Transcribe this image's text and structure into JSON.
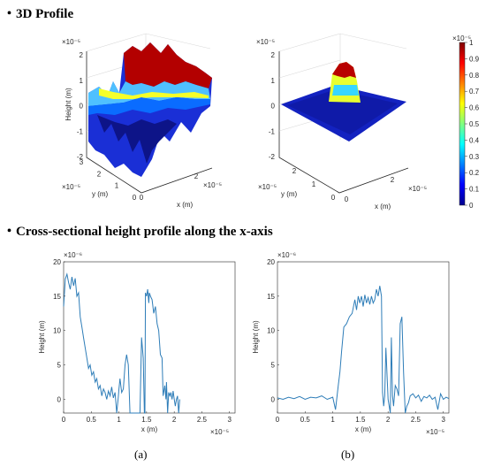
{
  "headings": {
    "profile3d": "・3D Profile",
    "cross": "・Cross-sectional height profile along the x-axis"
  },
  "captions": {
    "a": "(a)",
    "b": "(b)"
  },
  "colors": {
    "line": "#2e7db8",
    "axis": "#262626",
    "grid": "#d9d9d9"
  },
  "colorbar": {
    "colormap": "jet",
    "ticks": [
      "1",
      "0.9",
      "0.8",
      "0.7",
      "0.6",
      "0.5",
      "0.4",
      "0.3",
      "0.2",
      "0.1",
      "0"
    ],
    "exponent": "×10⁻⁵"
  },
  "chart_data": [
    {
      "type": "surface",
      "panel": "3d-a",
      "zlabel": "Height (m)",
      "xlabel": "x (m)",
      "ylabel": "y (m)",
      "zticks": [
        "2",
        "1",
        "0",
        "-1",
        "-2"
      ],
      "xticks": [
        "0",
        "2"
      ],
      "yticks": [
        "0",
        "1",
        "2",
        "3"
      ],
      "exponent": "×10⁻⁵",
      "zlim": [
        -2.2,
        2
      ],
      "colormap": "jet"
    },
    {
      "type": "surface",
      "panel": "3d-b",
      "xlabel": "x (m)",
      "ylabel": "y (m)",
      "zticks": [
        "2",
        "1",
        "0",
        "-1",
        "-2"
      ],
      "xticks": [
        "0",
        "2"
      ],
      "yticks": [
        "0",
        "1",
        "2"
      ],
      "exponent": "×10⁻⁵",
      "zlim": [
        -2,
        2
      ],
      "colormap": "jet"
    },
    {
      "type": "line",
      "panel": "a",
      "xlabel": "x (m)",
      "ylabel": "Height (m)",
      "y_exponent": "×10⁻⁶",
      "x_exponent": "×10⁻⁵",
      "xlim": [
        0,
        3.1
      ],
      "ylim": [
        -2,
        20
      ],
      "xticks": [
        "0",
        "0.5",
        "1",
        "1.5",
        "2",
        "2.5",
        "3"
      ],
      "yticks": [
        "0",
        "5",
        "10",
        "15",
        "20"
      ],
      "x": [
        0,
        0.03,
        0.06,
        0.09,
        0.12,
        0.15,
        0.18,
        0.21,
        0.24,
        0.27,
        0.3,
        0.33,
        0.36,
        0.39,
        0.42,
        0.45,
        0.48,
        0.51,
        0.54,
        0.57,
        0.6,
        0.63,
        0.66,
        0.69,
        0.72,
        0.75,
        0.78,
        0.81,
        0.84,
        0.87,
        0.9,
        0.93,
        0.96,
        0.99,
        1.0,
        1.02,
        1.05,
        1.08,
        1.11,
        1.14,
        1.17,
        1.2,
        1.22,
        1.24,
        1.25,
        1.26,
        1.27,
        1.29,
        1.32,
        1.35,
        1.38,
        1.41,
        1.44,
        1.46,
        1.47,
        1.48,
        1.5,
        1.52,
        1.54,
        1.55,
        1.57,
        1.6,
        1.63,
        1.66,
        1.69,
        1.72,
        1.75,
        1.78,
        1.8,
        1.83,
        1.85,
        1.86,
        1.88,
        1.9,
        1.92,
        1.94,
        1.96,
        1.98,
        2.0,
        2.02,
        2.04,
        2.06,
        2.08,
        2.1
      ],
      "y": [
        13.5,
        17.5,
        18.2,
        17.0,
        16.0,
        17.8,
        16.5,
        17.6,
        15.0,
        15.5,
        12.0,
        10.5,
        9.0,
        7.5,
        6.0,
        4.5,
        5.0,
        3.5,
        4.0,
        2.5,
        3.0,
        1.5,
        2.0,
        0.5,
        1.5,
        1.0,
        0.0,
        1.2,
        0.5,
        1.8,
        0.2,
        1.0,
        -2.0,
        0.5,
        1.5,
        3.0,
        1.0,
        1.5,
        5.0,
        6.5,
        5.0,
        -2.0,
        -2.0,
        -2.0,
        -2.0,
        -2.0,
        -2.0,
        -2.0,
        -2.0,
        -2.0,
        -2.0,
        9.0,
        6.0,
        -2.0,
        -2.0,
        15.5,
        15.0,
        16.0,
        14.0,
        15.5,
        15.0,
        14.5,
        12.5,
        13.5,
        11.0,
        10.0,
        6.5,
        6.0,
        0.5,
        2.0,
        0.0,
        2.5,
        -2.0,
        1.0,
        0.5,
        1.0,
        0.0,
        1.2,
        0.0,
        -1.0,
        0.0,
        0.5,
        -2.0,
        0.0
      ]
    },
    {
      "type": "line",
      "panel": "b",
      "xlabel": "x (m)",
      "ylabel": "Height (m)",
      "y_exponent": "×10⁻⁶",
      "x_exponent": "×10⁻⁵",
      "xlim": [
        0,
        3.1
      ],
      "ylim": [
        -2,
        20
      ],
      "xticks": [
        "0",
        "0.5",
        "1",
        "1.5",
        "2",
        "2.5",
        "3"
      ],
      "yticks": [
        "0",
        "5",
        "10",
        "15",
        "20"
      ],
      "x": [
        0,
        0.1,
        0.2,
        0.3,
        0.4,
        0.5,
        0.6,
        0.7,
        0.8,
        0.9,
        1.0,
        1.05,
        1.1,
        1.13,
        1.16,
        1.2,
        1.25,
        1.3,
        1.35,
        1.4,
        1.43,
        1.46,
        1.49,
        1.52,
        1.55,
        1.58,
        1.61,
        1.64,
        1.67,
        1.7,
        1.73,
        1.76,
        1.79,
        1.82,
        1.85,
        1.88,
        1.9,
        1.92,
        1.94,
        1.96,
        2.0,
        2.04,
        2.06,
        2.08,
        2.1,
        2.13,
        2.16,
        2.19,
        2.22,
        2.25,
        2.28,
        2.31,
        2.34,
        2.37,
        2.4,
        2.45,
        2.5,
        2.55,
        2.6,
        2.65,
        2.7,
        2.75,
        2.8,
        2.85,
        2.9,
        2.95,
        3.0,
        3.05,
        3.1
      ],
      "y": [
        0.2,
        0.0,
        0.3,
        0.1,
        0.4,
        0.0,
        0.3,
        0.2,
        0.5,
        0.0,
        0.3,
        -1.5,
        2.0,
        4.0,
        7.0,
        10.5,
        11.0,
        12.0,
        12.5,
        14.5,
        13.0,
        15.0,
        14.0,
        15.0,
        13.5,
        15.2,
        14.0,
        14.8,
        13.8,
        15.0,
        14.0,
        14.5,
        16.0,
        15.0,
        16.5,
        15.0,
        1.0,
        -1.0,
        0.5,
        7.5,
        0.0,
        -2.0,
        9.0,
        0.5,
        -1.0,
        2.0,
        1.5,
        0.5,
        11.0,
        12.0,
        4.0,
        -2.0,
        -1.0,
        -0.5,
        0.5,
        0.8,
        0.2,
        0.6,
        -0.3,
        0.4,
        0.2,
        0.6,
        0.0,
        0.3,
        -1.5,
        0.8,
        0.0,
        0.3,
        0.1
      ]
    }
  ]
}
